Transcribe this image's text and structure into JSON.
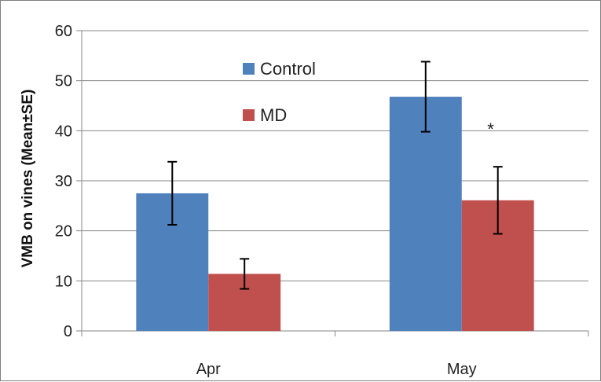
{
  "chart_data": {
    "type": "bar",
    "categories": [
      "Apr",
      "May"
    ],
    "series": [
      {
        "name": "Control",
        "color": "#4f81bd",
        "values": [
          27.5,
          46.8
        ],
        "error": [
          6.3,
          7.0
        ]
      },
      {
        "name": "MD",
        "color": "#c0504d",
        "values": [
          11.4,
          26.1
        ],
        "error": [
          3.0,
          6.7
        ]
      }
    ],
    "title": "",
    "xlabel": "",
    "ylabel": "VMB on vines (Mean±SE)",
    "ylim": [
      0,
      60
    ],
    "yticks": [
      "0",
      "10",
      "20",
      "30",
      "40",
      "50",
      "60"
    ],
    "grid": true,
    "legend_position": "top-center",
    "annotations": [
      {
        "text": "*",
        "category": "May",
        "series": "MD"
      }
    ]
  }
}
